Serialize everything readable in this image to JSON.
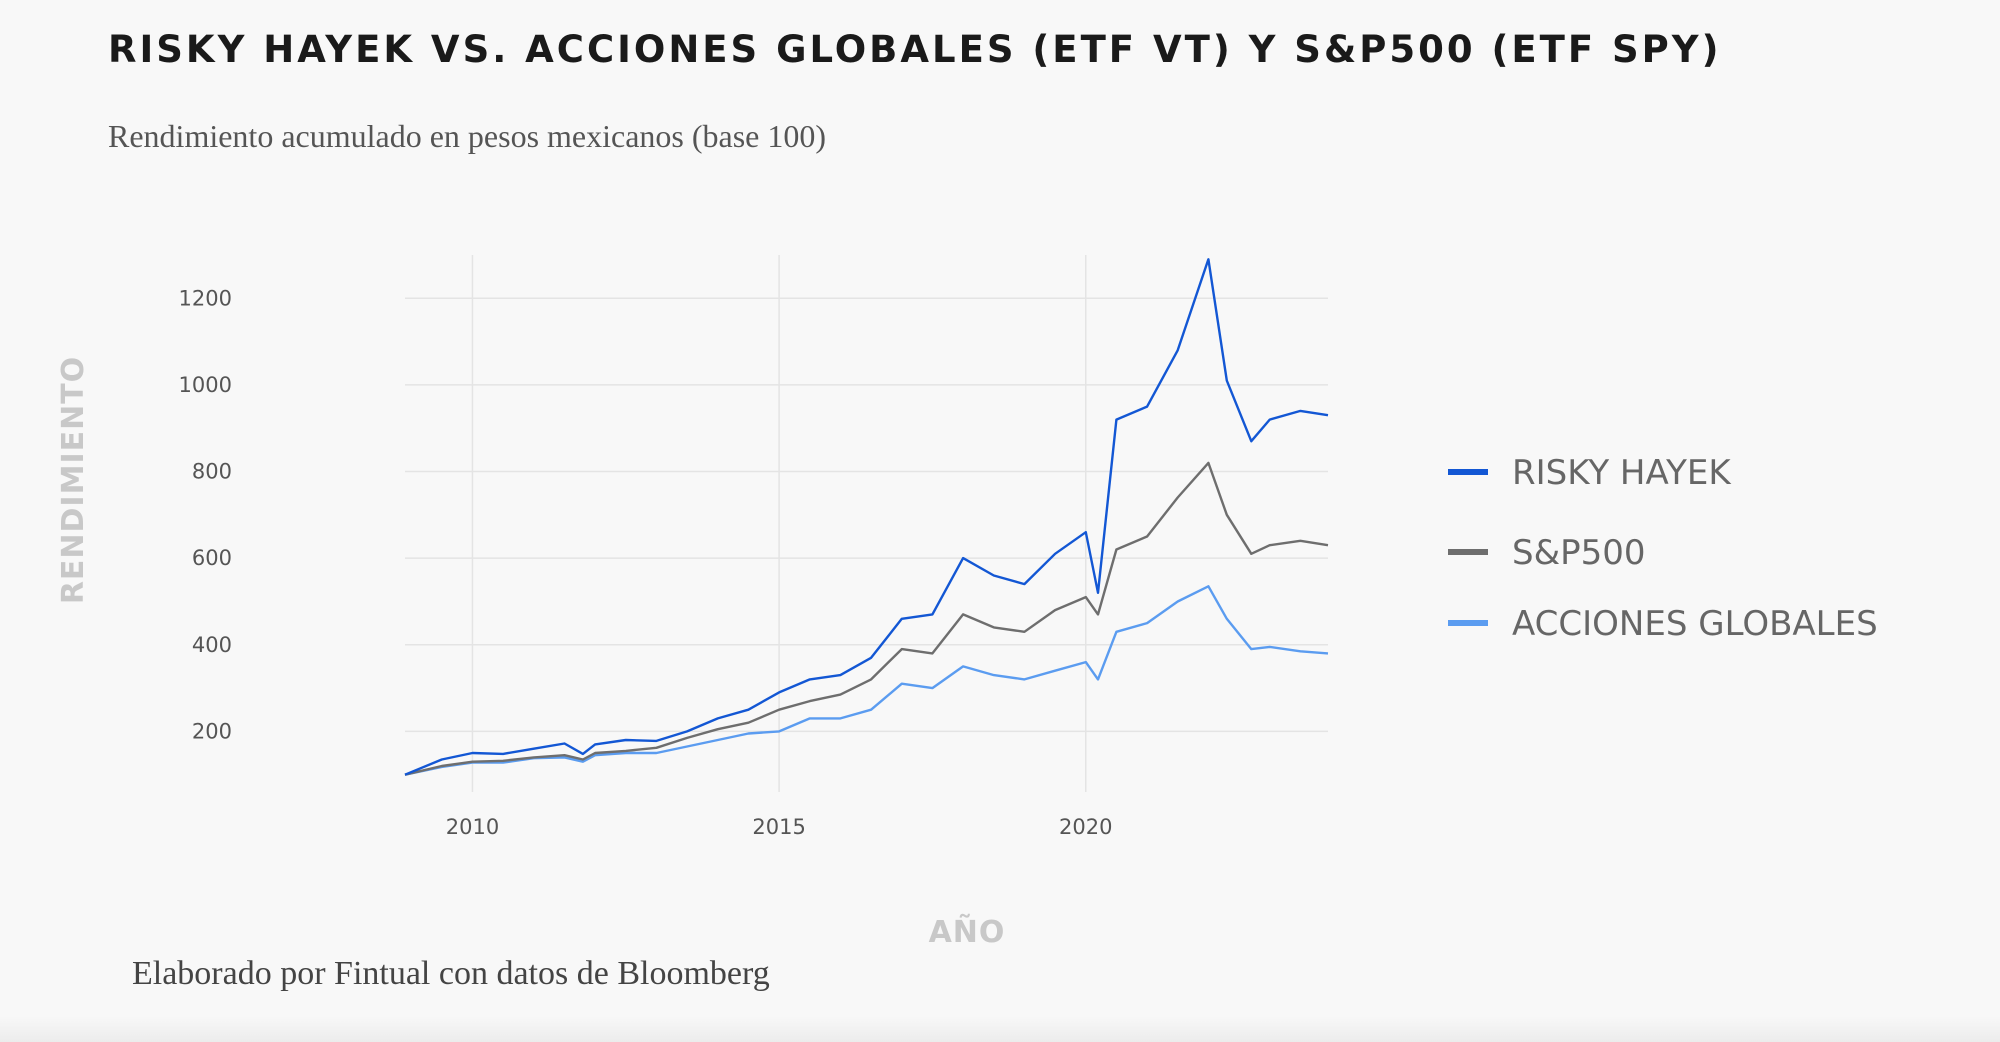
{
  "title": "RISKY HAYEK VS. ACCIONES GLOBALES (ETF VT) Y S&P500 (ETF SPY)",
  "subtitle": "Rendimiento acumulado en pesos mexicanos (base 100)",
  "source": "Elaborado por Fintual con datos de Bloomberg",
  "chart_data": {
    "type": "line",
    "xlabel": "AÑO",
    "ylabel": "RENDIMIENTO",
    "xlim": [
      2008.9,
      2023.95
    ],
    "ylim": [
      60,
      1300
    ],
    "x_ticks": [
      2010,
      2015,
      2020
    ],
    "y_ticks": [
      200,
      400,
      600,
      800,
      1000,
      1200
    ],
    "grid": true,
    "legend_position": "right",
    "x": [
      2008.9,
      2009.5,
      2010.0,
      2010.5,
      2011.0,
      2011.5,
      2011.8,
      2012.0,
      2012.5,
      2013.0,
      2013.5,
      2014.0,
      2014.5,
      2015.0,
      2015.5,
      2016.0,
      2016.5,
      2017.0,
      2017.5,
      2018.0,
      2018.5,
      2019.0,
      2019.5,
      2020.0,
      2020.2,
      2020.5,
      2021.0,
      2021.5,
      2022.0,
      2022.3,
      2022.7,
      2023.0,
      2023.5,
      2023.95
    ],
    "series": [
      {
        "name": "RISKY HAYEK",
        "color": "#1357d4",
        "values": [
          100,
          135,
          150,
          148,
          160,
          172,
          148,
          170,
          180,
          178,
          200,
          230,
          250,
          290,
          320,
          330,
          370,
          460,
          470,
          600,
          560,
          540,
          610,
          660,
          520,
          920,
          950,
          1080,
          1290,
          1010,
          870,
          920,
          940,
          930
        ]
      },
      {
        "name": "S&P500",
        "color": "#6e6e6e",
        "values": [
          100,
          120,
          130,
          132,
          140,
          145,
          135,
          150,
          155,
          162,
          185,
          205,
          220,
          250,
          270,
          285,
          320,
          390,
          380,
          470,
          440,
          430,
          480,
          510,
          470,
          620,
          650,
          740,
          820,
          700,
          610,
          630,
          640,
          630
        ]
      },
      {
        "name": "ACCIONES GLOBALES",
        "color": "#5b9cf0",
        "values": [
          100,
          118,
          128,
          128,
          138,
          140,
          130,
          145,
          150,
          150,
          165,
          180,
          195,
          200,
          230,
          230,
          250,
          310,
          300,
          350,
          330,
          320,
          340,
          360,
          320,
          430,
          450,
          500,
          535,
          460,
          390,
          395,
          385,
          380
        ]
      }
    ]
  }
}
